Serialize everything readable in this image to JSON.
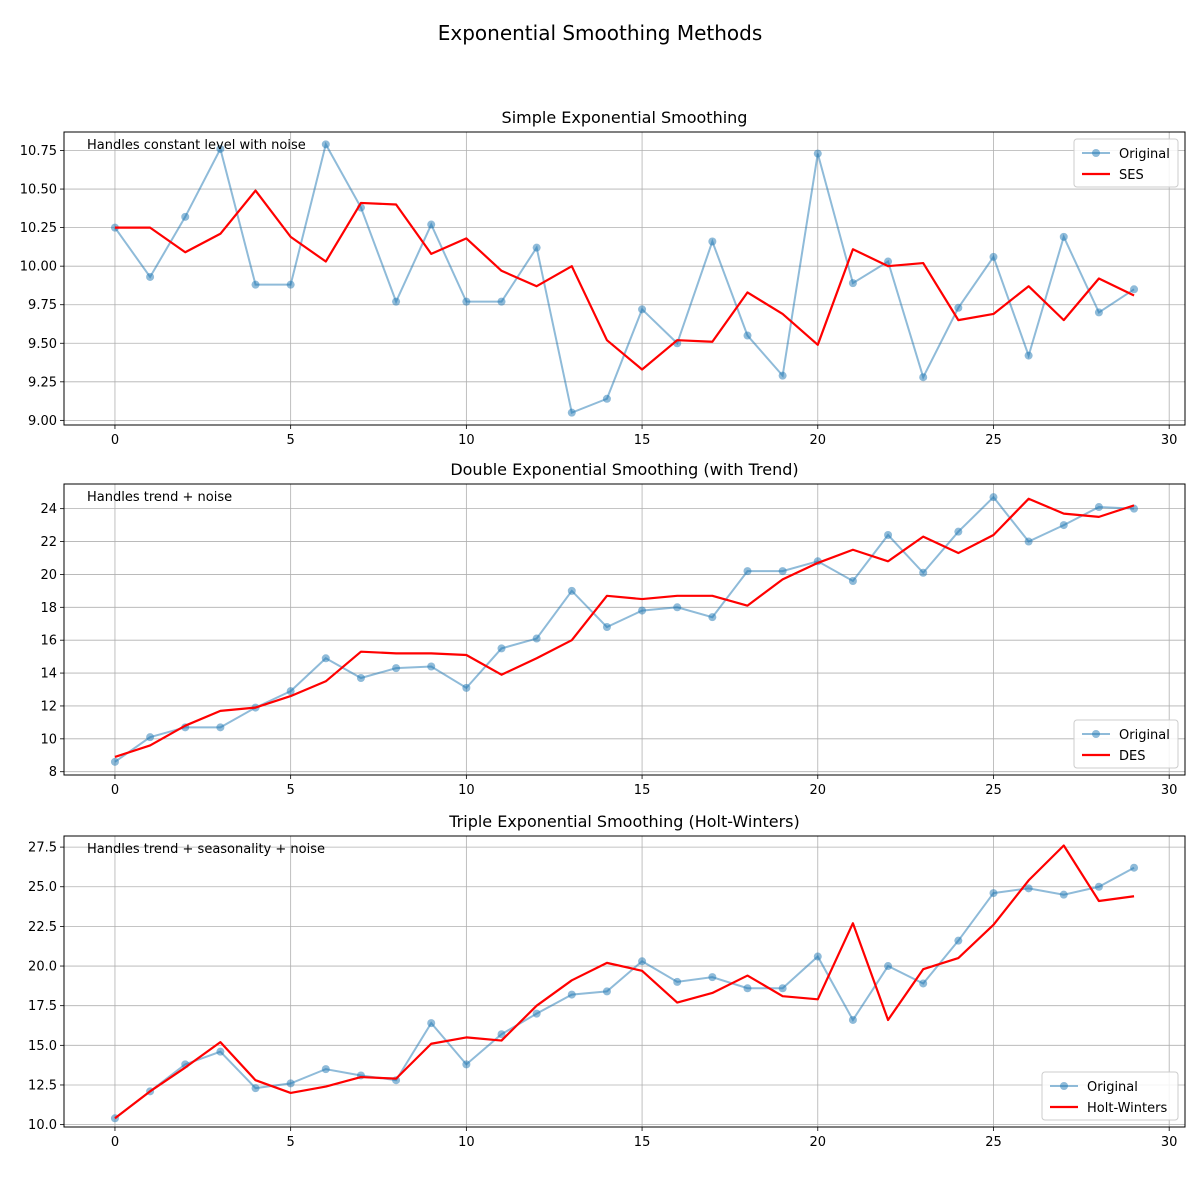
{
  "suptitle": "Exponential Smoothing Methods",
  "colors": {
    "original": "#1f77b4",
    "smoothed": "#ff0000",
    "grid": "#b0b0b0"
  },
  "chart_data": [
    {
      "type": "line",
      "title": "Simple Exponential Smoothing",
      "annotation": "Handles constant level with noise",
      "legend_position": "upper right",
      "grid": true,
      "xlim": [
        -1.45,
        30.45
      ],
      "ylim": [
        8.97,
        10.87
      ],
      "xticks": [
        0,
        5,
        10,
        15,
        20,
        25,
        30
      ],
      "yticks": [
        9.0,
        9.25,
        9.5,
        9.75,
        10.0,
        10.25,
        10.5,
        10.75
      ],
      "ytick_labels": [
        "9.00",
        "9.25",
        "9.50",
        "9.75",
        "10.00",
        "10.25",
        "10.50",
        "10.75"
      ],
      "x": [
        0,
        1,
        2,
        3,
        4,
        5,
        6,
        7,
        8,
        9,
        10,
        11,
        12,
        13,
        14,
        15,
        16,
        17,
        18,
        19,
        20,
        21,
        22,
        23,
        24,
        25,
        26,
        27,
        28,
        29
      ],
      "series": [
        {
          "name": "Original",
          "style": "line-marker",
          "values": [
            10.25,
            9.93,
            10.32,
            10.76,
            9.88,
            9.88,
            10.79,
            10.38,
            9.77,
            10.27,
            9.77,
            9.77,
            10.12,
            9.05,
            9.14,
            9.72,
            9.5,
            10.16,
            9.55,
            9.29,
            10.73,
            9.89,
            10.03,
            9.28,
            9.73,
            10.06,
            9.42,
            10.19,
            9.7,
            9.85
          ]
        },
        {
          "name": "SES",
          "style": "line",
          "values": [
            10.25,
            10.25,
            10.09,
            10.21,
            10.49,
            10.19,
            10.03,
            10.41,
            10.4,
            10.08,
            10.18,
            9.97,
            9.87,
            10.0,
            9.52,
            9.33,
            9.52,
            9.51,
            9.83,
            9.69,
            9.49,
            10.11,
            10.0,
            10.02,
            9.65,
            9.69,
            9.87,
            9.65,
            9.92,
            9.81
          ]
        }
      ]
    },
    {
      "type": "line",
      "title": "Double Exponential Smoothing (with Trend)",
      "annotation": "Handles trend + noise",
      "legend_position": "lower right",
      "grid": true,
      "xlim": [
        -1.45,
        30.45
      ],
      "ylim": [
        7.8,
        25.5
      ],
      "xticks": [
        0,
        5,
        10,
        15,
        20,
        25,
        30
      ],
      "yticks": [
        8,
        10,
        12,
        14,
        16,
        18,
        20,
        22,
        24
      ],
      "ytick_labels": [
        "8",
        "10",
        "12",
        "14",
        "16",
        "18",
        "20",
        "22",
        "24"
      ],
      "x": [
        0,
        1,
        2,
        3,
        4,
        5,
        6,
        7,
        8,
        9,
        10,
        11,
        12,
        13,
        14,
        15,
        16,
        17,
        18,
        19,
        20,
        21,
        22,
        23,
        24,
        25,
        26,
        27,
        28,
        29
      ],
      "series": [
        {
          "name": "Original",
          "style": "line-marker",
          "values": [
            8.6,
            10.1,
            10.7,
            10.7,
            11.9,
            12.9,
            14.9,
            13.7,
            14.3,
            14.4,
            13.1,
            15.5,
            16.1,
            19.0,
            16.8,
            17.8,
            18.0,
            17.4,
            20.2,
            20.2,
            20.8,
            19.6,
            22.4,
            20.1,
            22.6,
            24.7,
            22.0,
            23.0,
            24.1,
            24.0
          ]
        },
        {
          "name": "DES",
          "style": "line",
          "values": [
            8.9,
            9.6,
            10.8,
            11.7,
            11.9,
            12.6,
            13.5,
            15.3,
            15.2,
            15.2,
            15.1,
            13.9,
            14.9,
            16.0,
            18.7,
            18.5,
            18.7,
            18.7,
            18.1,
            19.7,
            20.7,
            21.5,
            20.8,
            22.3,
            21.3,
            22.4,
            24.6,
            23.7,
            23.5,
            24.2
          ]
        }
      ]
    },
    {
      "type": "line",
      "title": "Triple Exponential Smoothing (Holt-Winters)",
      "annotation": "Handles trend + seasonality + noise",
      "legend_position": "lower right",
      "grid": true,
      "xlim": [
        -1.45,
        30.45
      ],
      "ylim": [
        9.85,
        28.2
      ],
      "xticks": [
        0,
        5,
        10,
        15,
        20,
        25,
        30
      ],
      "yticks": [
        10.0,
        12.5,
        15.0,
        17.5,
        20.0,
        22.5,
        25.0,
        27.5
      ],
      "ytick_labels": [
        "10.0",
        "12.5",
        "15.0",
        "17.5",
        "20.0",
        "22.5",
        "25.0",
        "27.5"
      ],
      "x": [
        0,
        1,
        2,
        3,
        4,
        5,
        6,
        7,
        8,
        9,
        10,
        11,
        12,
        13,
        14,
        15,
        16,
        17,
        18,
        19,
        20,
        21,
        22,
        23,
        24,
        25,
        26,
        27,
        28,
        29
      ],
      "series": [
        {
          "name": "Original",
          "style": "line-marker",
          "values": [
            10.4,
            12.1,
            13.8,
            14.6,
            12.3,
            12.6,
            13.5,
            13.1,
            12.8,
            16.4,
            13.8,
            15.7,
            17.0,
            18.2,
            18.4,
            20.3,
            19.0,
            19.3,
            18.6,
            18.6,
            20.6,
            16.6,
            20.0,
            18.9,
            21.6,
            24.6,
            24.9,
            24.5,
            25.0,
            26.2
          ]
        },
        {
          "name": "Holt-Winters",
          "style": "line",
          "values": [
            10.4,
            12.1,
            13.6,
            15.2,
            12.8,
            12.0,
            12.4,
            13.0,
            12.9,
            15.1,
            15.5,
            15.3,
            17.5,
            19.1,
            20.2,
            19.7,
            17.7,
            18.3,
            19.4,
            18.1,
            17.9,
            22.7,
            16.6,
            19.8,
            20.5,
            22.6,
            25.4,
            27.6,
            24.1,
            24.4
          ]
        }
      ]
    }
  ]
}
